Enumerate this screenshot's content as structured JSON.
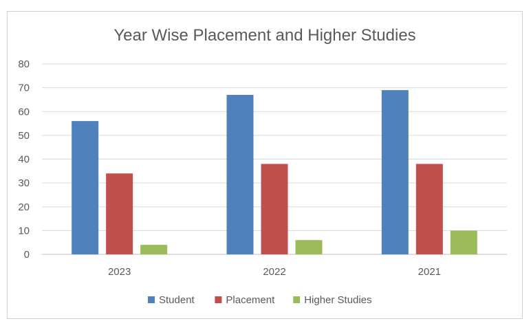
{
  "chart_data": {
    "type": "bar",
    "title": "Year Wise Placement and Higher Studies",
    "xlabel": "",
    "ylabel": "",
    "categories": [
      "2023",
      "2022",
      "2021"
    ],
    "series": [
      {
        "name": "Student",
        "values": [
          56,
          67,
          69
        ],
        "color": "#4f81bd"
      },
      {
        "name": "Placement",
        "values": [
          34,
          38,
          38
        ],
        "color": "#c0504d"
      },
      {
        "name": "Higher Studies",
        "values": [
          4,
          6,
          10
        ],
        "color": "#9bbb59"
      }
    ],
    "ylim": [
      0,
      80
    ],
    "yticks": [
      0,
      10,
      20,
      30,
      40,
      50,
      60,
      70,
      80
    ],
    "grid": true,
    "legend": "bottom"
  }
}
